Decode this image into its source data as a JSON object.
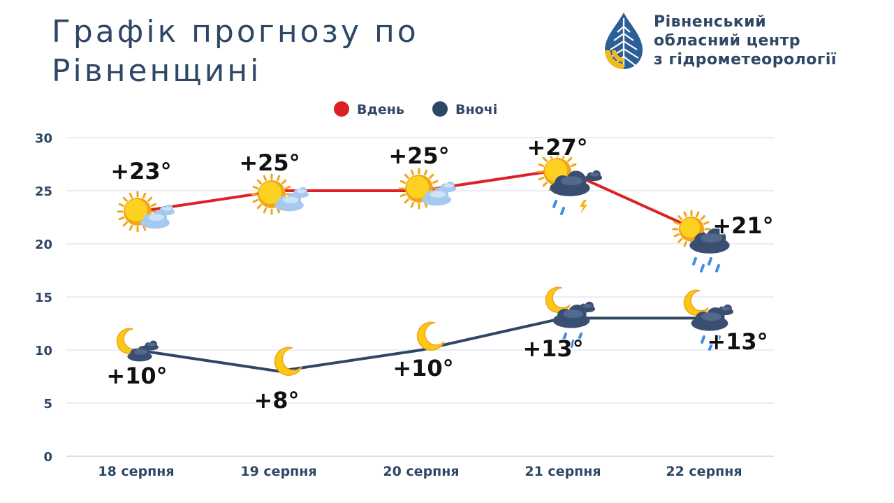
{
  "header": {
    "title_line1": "Графік прогнозу по",
    "title_line2": "Рівненщині"
  },
  "org": {
    "line1": "Рівненський",
    "line2": "обласний центр",
    "line3": "з гідрометеорології"
  },
  "colors": {
    "day": "#dd1f26",
    "night": "#2f4766",
    "grid": "#d7dbe3",
    "axis_text": "#2f4766",
    "logo_blue": "#2c5e98",
    "logo_yellow": "#f3b81a"
  },
  "chart_data": {
    "type": "line",
    "categories": [
      "18 серпня",
      "19 серпня",
      "20 серпня",
      "21 серпня",
      "22 серпня"
    ],
    "ylim": [
      0,
      30
    ],
    "yticks": [
      0,
      5,
      10,
      15,
      20,
      25,
      30
    ],
    "grid": true,
    "legend_position": "top-center",
    "series": [
      {
        "name": "Вдень",
        "values": [
          23,
          25,
          25,
          27,
          21
        ],
        "labels": [
          "+23°",
          "+25°",
          "+25°",
          "+27°",
          "+21°"
        ],
        "icons": [
          "sun-cloud-icon",
          "sun-cloud-icon",
          "sun-cloud-icon",
          "thunderstorm-icon",
          "sun-rain-cloud-icon"
        ]
      },
      {
        "name": "Вночі",
        "values": [
          10,
          8,
          10,
          13,
          13
        ],
        "labels": [
          "+10°",
          "+8°",
          "+10°",
          "+13°",
          "+13°"
        ],
        "icons": [
          "moon-cloud-icon",
          "moon-icon",
          "moon-icon",
          "moon-cloud-rain-icon",
          "moon-cloud-rain-icon"
        ]
      }
    ]
  }
}
